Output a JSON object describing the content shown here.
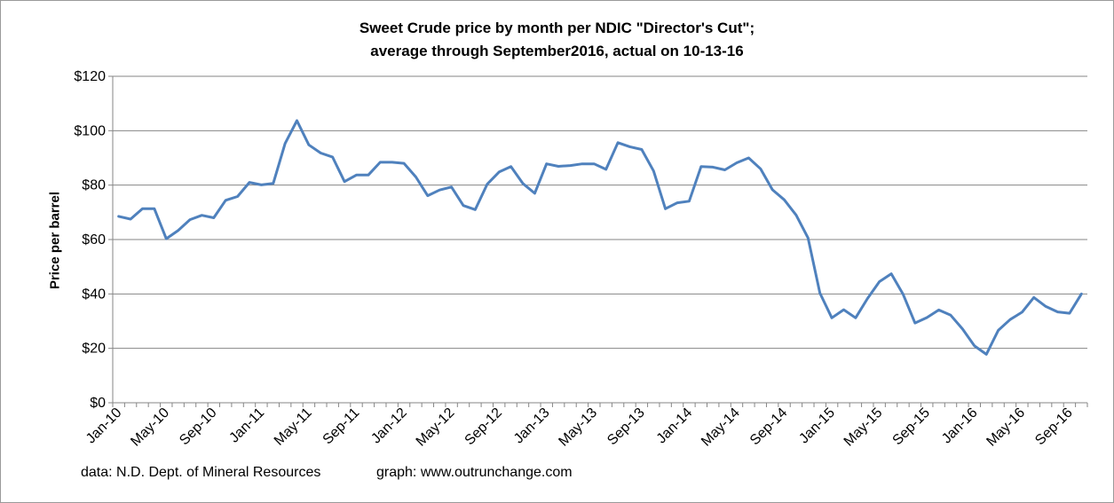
{
  "chart_data": {
    "type": "line",
    "title_line1": "Sweet Crude price by month per NDIC \"Director's Cut\";",
    "title_line2": "average through  September2016, actual on  10-13-16",
    "ylabel": "Price per barrel",
    "xlabel": "",
    "ylim": [
      0,
      120
    ],
    "y_ticks": [
      0,
      20,
      40,
      60,
      80,
      100,
      120
    ],
    "y_tick_labels": [
      "$0",
      "$20",
      "$40",
      "$60",
      "$80",
      "$100",
      "$120"
    ],
    "x_tick_labels": [
      "Jan-10",
      "May-10",
      "Sep-10",
      "Jan-11",
      "May-11",
      "Sep-11",
      "Jan-12",
      "May-12",
      "Sep-12",
      "Jan-13",
      "May-13",
      "Sep-13",
      "Jan-14",
      "May-14",
      "Sep-14",
      "Jan-15",
      "May-15",
      "Sep-15",
      "Jan-16",
      "May-16",
      "Sep-16"
    ],
    "x_tick_every_months": 4,
    "grid": true,
    "line_color": "#4f81bd",
    "series": [
      {
        "name": "Sweet Crude price",
        "start": "Jan-10",
        "values": [
          68.5,
          67.5,
          71.3,
          71.3,
          60.3,
          63.3,
          67.3,
          68.9,
          68.0,
          74.4,
          75.8,
          81.0,
          80.1,
          80.6,
          95.3,
          103.7,
          94.8,
          91.8,
          90.3,
          81.3,
          83.7,
          83.7,
          88.4,
          88.4,
          88.0,
          83.0,
          76.1,
          78.2,
          79.3,
          72.5,
          71.0,
          80.3,
          84.8,
          86.8,
          80.6,
          77.0,
          87.8,
          86.9,
          87.2,
          87.8,
          87.8,
          85.8,
          95.6,
          94.1,
          93.1,
          85.2,
          71.3,
          73.5,
          74.1,
          86.8,
          86.6,
          85.6,
          88.2,
          90.0,
          86.0,
          78.3,
          74.6,
          69.0,
          60.6,
          40.3,
          31.2,
          34.2,
          31.2,
          38.3,
          44.5,
          47.4,
          39.8,
          29.3,
          31.3,
          34.1,
          32.2,
          27.1,
          20.9,
          17.8,
          26.6,
          30.6,
          33.3,
          38.7,
          35.4,
          33.4,
          32.9,
          40.0
        ]
      }
    ]
  },
  "footer": {
    "source": "data: N.D. Dept. of Mineral Resources",
    "graph": "graph:  www.outrunchange.com"
  }
}
